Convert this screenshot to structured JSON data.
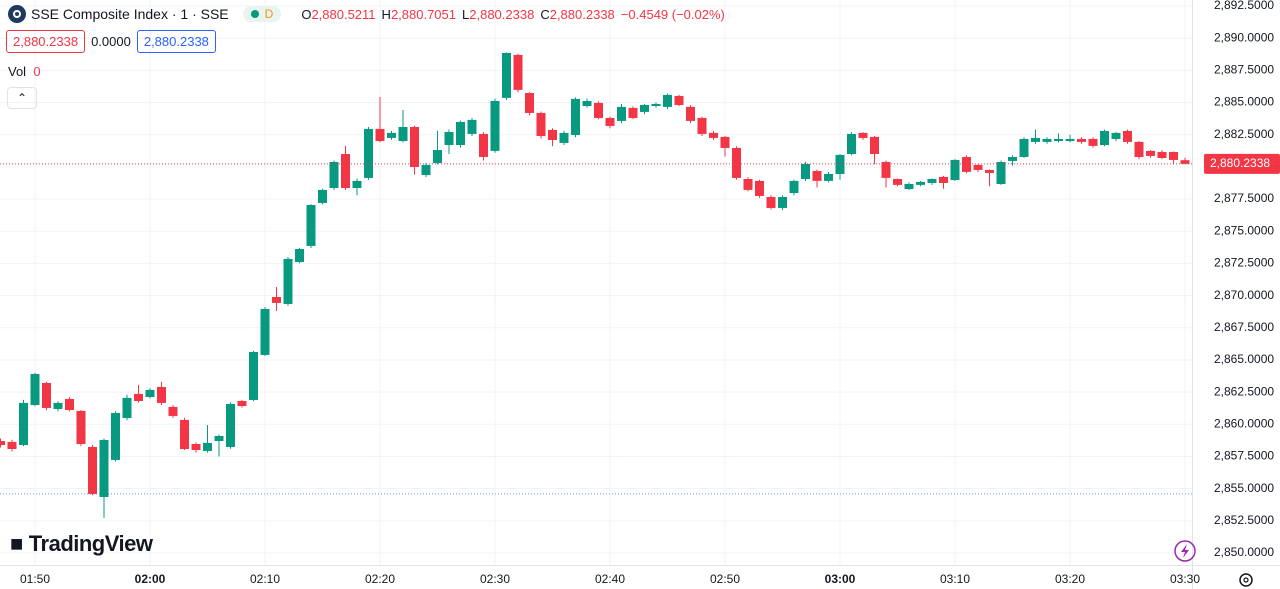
{
  "header": {
    "symbol": "SSE Composite Index · 1 · SSE",
    "badge": "D",
    "ohlc": [
      {
        "label": "O",
        "value": "2,880.5211"
      },
      {
        "label": "H",
        "value": "2,880.7051"
      },
      {
        "label": "L",
        "value": "2,880.2338"
      },
      {
        "label": "C",
        "value": "2,880.2338"
      }
    ],
    "change": "−0.4549 (−0.02%)",
    "boxes": [
      "2,880.2338",
      "0.0000",
      "2,880.2338"
    ],
    "vol_label": "Vol",
    "vol_value": "0",
    "brand": "TradingView"
  },
  "chart_data": {
    "type": "candlestick",
    "categories": [
      null,
      null,
      null,
      "01:50",
      null,
      null,
      null,
      null,
      null,
      null,
      null,
      null,
      null,
      "02:00",
      null,
      null,
      null,
      null,
      null,
      null,
      null,
      null,
      null,
      "02:10",
      null,
      null,
      null,
      null,
      null,
      null,
      null,
      null,
      null,
      "02:20",
      null,
      null,
      null,
      null,
      null,
      null,
      null,
      null,
      null,
      "02:30",
      null,
      null,
      null,
      null,
      null,
      null,
      null,
      null,
      null,
      "02:40",
      null,
      null,
      null,
      null,
      null,
      null,
      null,
      null,
      null,
      "02:50",
      null,
      null,
      null,
      null,
      null,
      null,
      null,
      null,
      null,
      "03:00",
      null,
      null,
      null,
      null,
      null,
      null,
      null,
      null,
      null,
      "03:10",
      null,
      null,
      null,
      null,
      null,
      null,
      null,
      null,
      null,
      "03:20",
      null,
      null,
      null,
      null,
      null,
      null,
      null,
      null,
      null,
      "03:30"
    ],
    "bold_categories": [
      13,
      73
    ],
    "series": [
      {
        "name": "SSE Composite Index",
        "up_color": "#089981",
        "down_color": "#f23645",
        "open": [
          2858.7,
          2858.63,
          2858.39,
          2861.5,
          2863.21,
          2861.19,
          2861.97,
          2861.04,
          2858.24,
          2854.35,
          2857.23,
          2860.49,
          2862.36,
          2862.12,
          2862.9,
          2861.35,
          2860.34,
          2858.47,
          2857.93,
          2858.7,
          2858.24,
          2861.81,
          2861.89,
          2865.39,
          2869.89,
          2869.35,
          2872.61,
          2873.86,
          2877.2,
          2878.36,
          2881.0,
          2878.36,
          2879.14,
          2882.95,
          2882.25,
          2882.01,
          2883.1,
          2879.37,
          2880.3,
          2881.7,
          2881.7,
          2882.56,
          2882.56,
          2881.24,
          2885.36,
          2888.7,
          2885.74,
          2884.19,
          2882.87,
          2881.86,
          2882.48,
          2884.73,
          2884.97,
          2883.8,
          2883.57,
          2884.58,
          2884.27,
          2884.73,
          2884.66,
          2885.51,
          2884.66,
          2883.8,
          2882.64,
          2882.33,
          2881.47,
          2879.06,
          2878.91,
          2877.66,
          2876.81,
          2877.97,
          2879.06,
          2879.68,
          2878.91,
          2879.45,
          2881.0,
          2882.64,
          2882.33,
          2880.38,
          2879.06,
          2878.28,
          2878.6,
          2878.75,
          2879.22,
          2878.98,
          2880.77,
          2880.15,
          2879.76,
          2878.67,
          2880.46,
          2880.77,
          2881.94,
          2881.94,
          2882.01,
          2882.01,
          2882.17,
          2882.17,
          2881.7,
          2882.17,
          2882.79,
          2881.94,
          2881.24,
          2881.16,
          2881.16,
          2880.5211
        ],
        "high": [
          2858.9,
          2858.8,
          2861.9,
          2864.0,
          2863.3,
          2861.8,
          2862.1,
          2861.1,
          2858.4,
          2858.9,
          2861.0,
          2862.3,
          2863.06,
          2862.8,
          2863.29,
          2861.5,
          2860.5,
          2858.6,
          2859.95,
          2859.2,
          2861.7,
          2861.9,
          2865.7,
          2869.1,
          2870.67,
          2873.0,
          2873.7,
          2877.1,
          2878.3,
          2880.5,
          2881.63,
          2879.1,
          2883.1,
          2885.43,
          2882.8,
          2884.42,
          2883.2,
          2880.3,
          2882.8,
          2882.9,
          2883.6,
          2883.8,
          2882.7,
          2885.3,
          2888.9,
          2888.8,
          2885.8,
          2884.3,
          2883.0,
          2882.8,
          2885.4,
          2885.3,
          2885.1,
          2883.9,
          2884.9,
          2884.7,
          2884.9,
          2885.0,
          2885.7,
          2885.6,
          2884.8,
          2883.9,
          2882.8,
          2882.4,
          2881.6,
          2879.2,
          2879.0,
          2877.8,
          2877.8,
          2879.0,
          2880.4,
          2879.8,
          2879.6,
          2881.0,
          2882.7,
          2882.7,
          2882.4,
          2880.5,
          2879.1,
          2878.8,
          2878.9,
          2879.1,
          2879.3,
          2880.6,
          2880.9,
          2880.2,
          2879.8,
          2880.5,
          2880.9,
          2882.3,
          2882.9,
          2882.3,
          2882.6,
          2882.5,
          2882.3,
          2882.3,
          2882.9,
          2882.7,
          2882.9,
          2882.0,
          2881.3,
          2881.3,
          2881.2,
          2880.7051
        ],
        "low": [
          2858.2,
          2857.9,
          2858.3,
          2861.4,
          2861.1,
          2861.0,
          2861.0,
          2858.3,
          2854.5,
          2852.72,
          2857.1,
          2860.3,
          2861.7,
          2862.0,
          2861.5,
          2860.5,
          2858.0,
          2857.8,
          2857.8,
          2857.5,
          2858.1,
          2861.3,
          2861.8,
          2865.3,
          2868.8,
          2869.2,
          2872.5,
          2873.7,
          2877.1,
          2878.2,
          2878.2,
          2877.8,
          2879.0,
          2881.9,
          2882.1,
          2881.9,
          2879.4,
          2879.2,
          2880.2,
          2881.0,
          2881.5,
          2882.4,
          2880.5,
          2881.1,
          2885.2,
          2885.8,
          2884.0,
          2882.2,
          2881.6,
          2881.7,
          2882.3,
          2884.6,
          2883.7,
          2883.0,
          2883.4,
          2883.7,
          2884.1,
          2884.6,
          2884.5,
          2884.7,
          2883.4,
          2882.4,
          2882.1,
          2880.8,
          2879.0,
          2878.1,
          2877.6,
          2876.7,
          2876.65,
          2877.8,
          2878.9,
          2878.4,
          2878.8,
          2879.0,
          2880.9,
          2882.1,
          2880.2,
          2878.4,
          2878.5,
          2878.2,
          2878.5,
          2878.6,
          2878.3,
          2878.9,
          2879.5,
          2879.6,
          2878.5,
          2878.6,
          2880.1,
          2880.7,
          2881.8,
          2881.8,
          2881.9,
          2881.9,
          2881.8,
          2881.5,
          2881.6,
          2882.0,
          2881.8,
          2880.6,
          2880.7,
          2880.6,
          2880.2,
          2880.2338
        ],
        "close": [
          2858.39,
          2858.08,
          2861.66,
          2863.91,
          2861.27,
          2861.66,
          2861.11,
          2858.47,
          2854.59,
          2858.78,
          2860.88,
          2862.05,
          2861.81,
          2862.67,
          2861.66,
          2860.65,
          2858.08,
          2858.0,
          2858.55,
          2859.09,
          2861.58,
          2861.42,
          2865.62,
          2868.96,
          2869.43,
          2872.85,
          2873.62,
          2877.04,
          2878.21,
          2880.38,
          2878.36,
          2878.91,
          2882.95,
          2882.01,
          2882.64,
          2883.1,
          2879.99,
          2880.15,
          2881.31,
          2882.71,
          2883.49,
          2883.65,
          2880.77,
          2885.12,
          2888.85,
          2885.98,
          2884.19,
          2882.4,
          2882.09,
          2882.64,
          2885.28,
          2885.12,
          2883.8,
          2883.18,
          2884.66,
          2883.8,
          2884.81,
          2884.89,
          2885.59,
          2884.81,
          2883.57,
          2882.56,
          2882.25,
          2881.47,
          2879.14,
          2878.21,
          2877.74,
          2876.81,
          2877.66,
          2878.91,
          2880.23,
          2878.91,
          2879.45,
          2880.93,
          2882.56,
          2882.25,
          2881.0,
          2879.14,
          2878.6,
          2878.67,
          2878.83,
          2879.06,
          2878.75,
          2880.54,
          2879.61,
          2879.76,
          2879.53,
          2880.38,
          2880.77,
          2882.17,
          2882.25,
          2882.17,
          2882.17,
          2882.17,
          2881.94,
          2881.63,
          2882.79,
          2882.64,
          2881.94,
          2880.77,
          2880.85,
          2880.69,
          2880.54,
          2880.2338
        ]
      }
    ],
    "ylim": [
      2850,
      2892.5
    ],
    "yticks": [
      {
        "value": 2850,
        "label": "2,850.0000"
      },
      {
        "value": 2852.5,
        "label": "2,852.5000"
      },
      {
        "value": 2855,
        "label": "2,855.0000"
      },
      {
        "value": 2857.5,
        "label": "2,857.5000"
      },
      {
        "value": 2860,
        "label": "2,860.0000"
      },
      {
        "value": 2862.5,
        "label": "2,862.5000"
      },
      {
        "value": 2865,
        "label": "2,865.0000"
      },
      {
        "value": 2867.5,
        "label": "2,867.5000"
      },
      {
        "value": 2870,
        "label": "2,870.0000"
      },
      {
        "value": 2872.5,
        "label": "2,872.5000"
      },
      {
        "value": 2875,
        "label": "2,875.0000"
      },
      {
        "value": 2877.5,
        "label": "2,877.5000"
      },
      {
        "value": 2880,
        "label": "2,880.0000"
      },
      {
        "value": 2882.5,
        "label": "2,882.5000"
      },
      {
        "value": 2885,
        "label": "2,885.0000"
      },
      {
        "value": 2887.5,
        "label": "2,887.5000"
      },
      {
        "value": 2890,
        "label": "2,890.0000"
      },
      {
        "value": 2892.5,
        "label": "2,892.5000"
      }
    ],
    "grid": true,
    "price_line": {
      "value": 2880.2338,
      "label": "2,880.2338",
      "color": "#f23645"
    },
    "reference_line": {
      "value": 2854.59,
      "color": "#5b9cf6"
    }
  }
}
